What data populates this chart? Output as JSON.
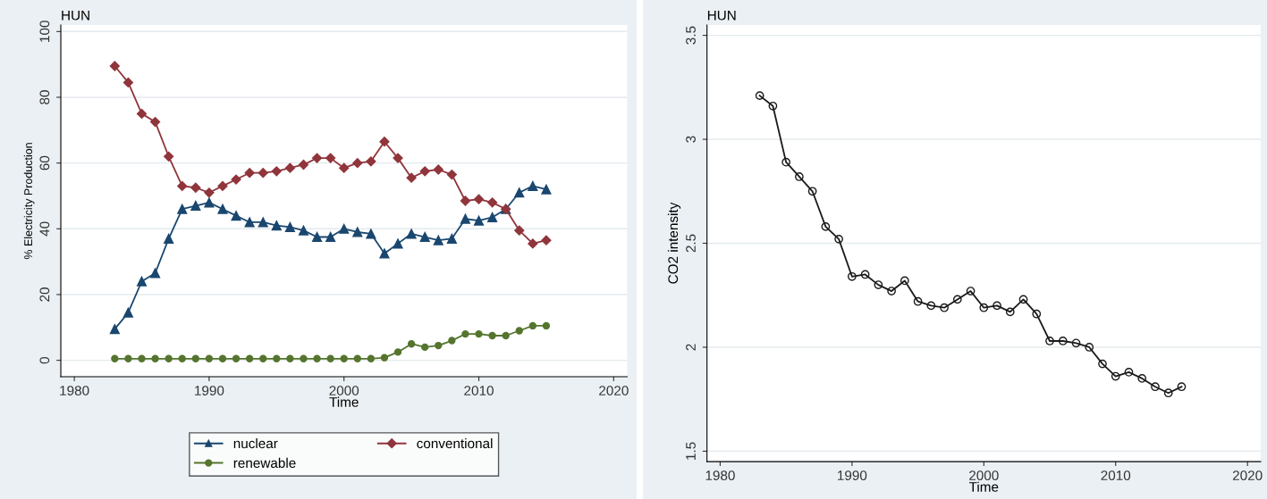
{
  "chart_data": [
    {
      "type": "line",
      "title": "HUN",
      "xlabel": "Time",
      "ylabel": "% Electricity Production",
      "x": [
        1983,
        1984,
        1985,
        1986,
        1987,
        1988,
        1989,
        1990,
        1991,
        1992,
        1993,
        1994,
        1995,
        1996,
        1997,
        1998,
        1999,
        2000,
        2001,
        2002,
        2003,
        2004,
        2005,
        2006,
        2007,
        2008,
        2009,
        2010,
        2011,
        2012,
        2013,
        2014,
        2015
      ],
      "series": [
        {
          "name": "nuclear",
          "color": "#1a476f",
          "marker": "triangle",
          "values": [
            9.5,
            14.5,
            24,
            26.5,
            37,
            46,
            47,
            48,
            46,
            44,
            42,
            42,
            41,
            40.5,
            39.5,
            37.5,
            37.5,
            40,
            39,
            38.5,
            32.5,
            35.5,
            38.5,
            37.5,
            36.5,
            37,
            43,
            42.5,
            43.5,
            46,
            51,
            53,
            52
          ]
        },
        {
          "name": "conventional",
          "color": "#90353b",
          "marker": "diamond",
          "values": [
            89.5,
            84.5,
            75,
            72.5,
            62,
            53,
            52.5,
            51,
            53,
            55,
            57,
            57,
            57.5,
            58.5,
            59.5,
            61.5,
            61.5,
            58.5,
            60,
            60.5,
            66.5,
            61.5,
            55.5,
            57.5,
            58,
            56.5,
            48.5,
            49,
            48,
            46,
            39.5,
            35.5,
            36.5
          ]
        },
        {
          "name": "renewable",
          "color": "#55752f",
          "marker": "circle",
          "values": [
            0.5,
            0.5,
            0.5,
            0.5,
            0.5,
            0.5,
            0.5,
            0.5,
            0.5,
            0.5,
            0.5,
            0.5,
            0.5,
            0.5,
            0.5,
            0.5,
            0.5,
            0.5,
            0.5,
            0.5,
            0.8,
            2.5,
            5,
            4,
            4.5,
            6,
            8,
            8,
            7.5,
            7.5,
            9,
            10.5,
            10.5
          ]
        }
      ],
      "xlim": [
        1979,
        2021
      ],
      "xticks": [
        1980,
        1990,
        2000,
        2010,
        2020
      ],
      "ylim": [
        -5,
        102
      ],
      "yticks": [
        0,
        20,
        40,
        60,
        80,
        100
      ],
      "grid": "y",
      "legend": "bottom"
    },
    {
      "type": "line",
      "title": "HUN",
      "xlabel": "Time",
      "ylabel": "CO2 intensity",
      "x": [
        1983,
        1984,
        1985,
        1986,
        1987,
        1988,
        1989,
        1990,
        1991,
        1992,
        1993,
        1994,
        1995,
        1996,
        1997,
        1998,
        1999,
        2000,
        2001,
        2002,
        2003,
        2004,
        2005,
        2006,
        2007,
        2008,
        2009,
        2010,
        2011,
        2012,
        2013,
        2014,
        2015
      ],
      "series": [
        {
          "color": "#1a1a1a",
          "marker": "circle",
          "values": [
            3.21,
            3.16,
            2.89,
            2.82,
            2.75,
            2.58,
            2.52,
            2.34,
            2.35,
            2.3,
            2.27,
            2.32,
            2.22,
            2.2,
            2.19,
            2.23,
            2.27,
            2.19,
            2.2,
            2.17,
            2.23,
            2.16,
            2.03,
            2.03,
            2.02,
            2.0,
            1.92,
            1.86,
            1.88,
            1.85,
            1.81,
            1.78,
            1.81
          ]
        }
      ],
      "xlim": [
        1979,
        2021
      ],
      "xticks": [
        1980,
        1990,
        2000,
        2010,
        2020
      ],
      "ylim": [
        1.45,
        3.55
      ],
      "yticks": [
        1.5,
        2,
        2.5,
        3,
        3.5
      ],
      "grid": "y"
    }
  ]
}
